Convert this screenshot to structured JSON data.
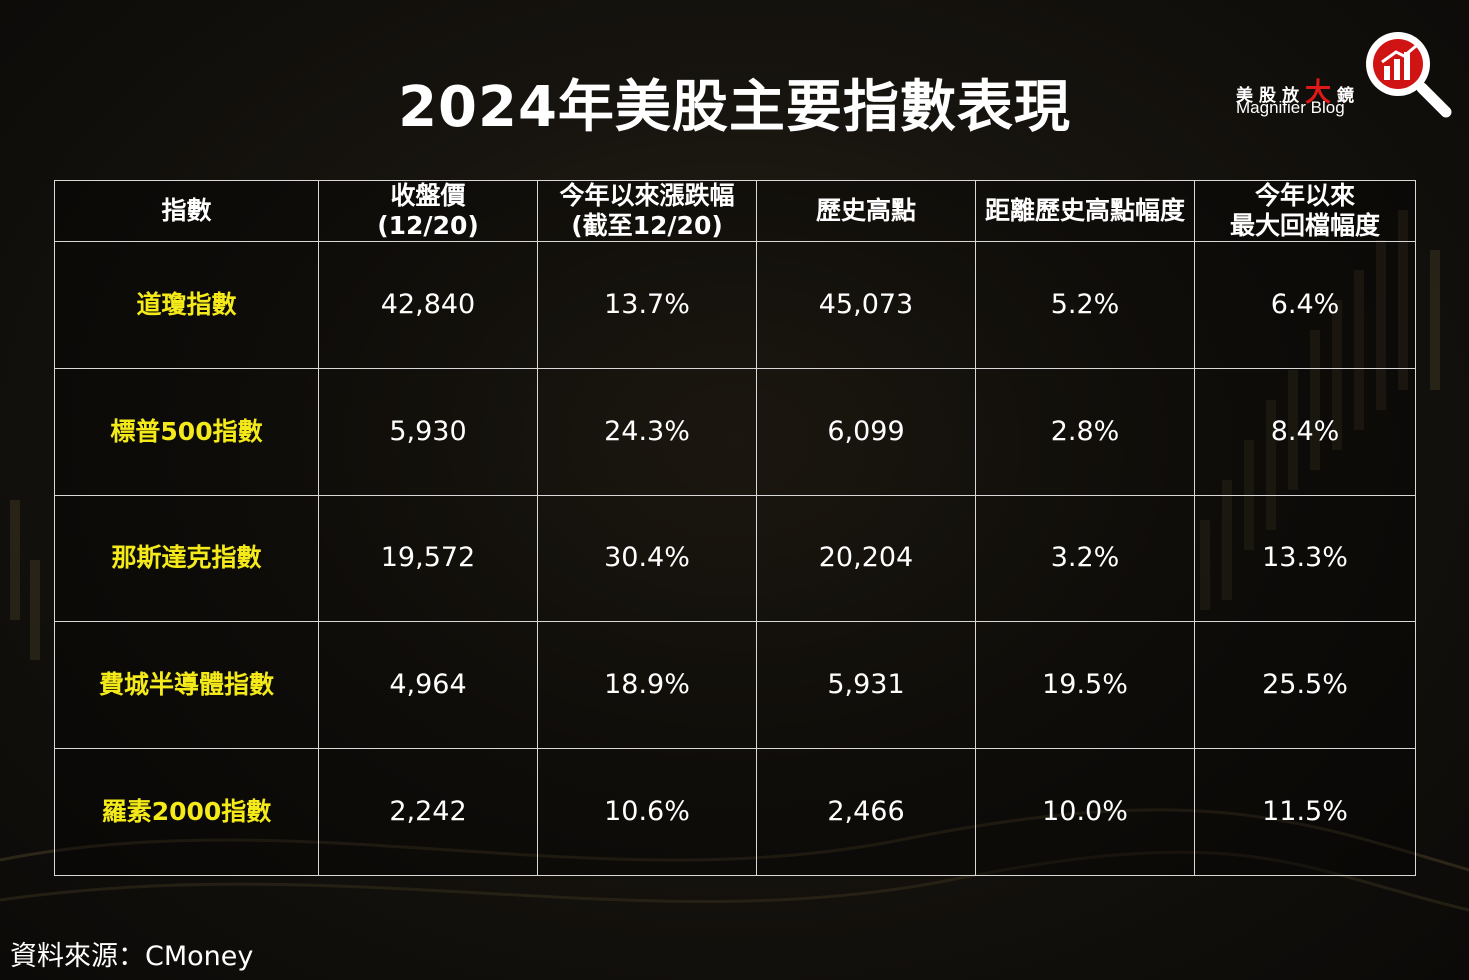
{
  "title": "2024年美股主要指數表現",
  "logo": {
    "cn_part1": "美股放",
    "cn_big": "大",
    "cn_part2": "鏡",
    "en": "Magnifier Blog",
    "icon": "magnifier-chart-icon",
    "accent": "#e01818"
  },
  "table": {
    "headers": [
      [
        "指數"
      ],
      [
        "收盤價",
        "(12/20)"
      ],
      [
        "今年以來漲跌幅",
        "(截至12/20)"
      ],
      [
        "歷史高點"
      ],
      [
        "距離歷史高點幅度"
      ],
      [
        "今年以來",
        "最大回檔幅度"
      ]
    ],
    "rows": [
      {
        "name": "道瓊指數",
        "close": "42,840",
        "ytd": "13.7%",
        "high": "45,073",
        "from_high": "5.2%",
        "max_dd": "6.4%"
      },
      {
        "name": "標普500指數",
        "close": "5,930",
        "ytd": "24.3%",
        "high": "6,099",
        "from_high": "2.8%",
        "max_dd": "8.4%"
      },
      {
        "name": "那斯達克指數",
        "close": "19,572",
        "ytd": "30.4%",
        "high": "20,204",
        "from_high": "3.2%",
        "max_dd": "13.3%"
      },
      {
        "name": "費城半導體指數",
        "close": "4,964",
        "ytd": "18.9%",
        "high": "5,931",
        "from_high": "19.5%",
        "max_dd": "25.5%"
      },
      {
        "name": "羅素2000指數",
        "close": "2,242",
        "ytd": "10.6%",
        "high": "2,466",
        "from_high": "10.0%",
        "max_dd": "11.5%"
      }
    ],
    "name_color": "#f4ea1a"
  },
  "source": "資料來源：CMoney"
}
